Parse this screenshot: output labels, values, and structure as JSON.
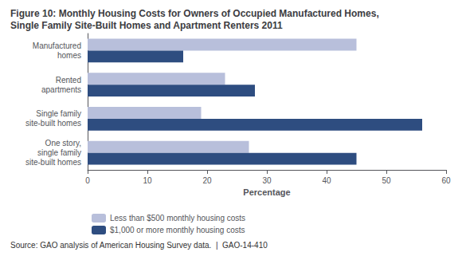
{
  "chart_data": {
    "type": "bar",
    "orientation": "horizontal",
    "title": "Figure 10: Monthly Housing Costs for Owners of Occupied Manufactured Homes,\nSingle Family Site-Built Homes and Apartment Renters 2011",
    "categories": [
      "Manufactured\nhomes",
      "Rented\napartments",
      "Single family\nsite-built homes",
      "One story,\nsingle family\nsite-built homes"
    ],
    "series": [
      {
        "name": "Less than $500 monthly housing costs",
        "color": "#b8bfdb",
        "values": [
          45,
          23,
          19,
          27
        ]
      },
      {
        "name": "$1,000 or more monthly housing costs",
        "color": "#2e4d80",
        "values": [
          16,
          28,
          56,
          45
        ]
      }
    ],
    "xlabel": "Percentage",
    "xlim": [
      0,
      60
    ],
    "xticks": [
      0,
      10,
      20,
      30,
      40,
      50,
      60
    ],
    "grid": false,
    "legend": "lower left",
    "annotations": [
      "Source: GAO analysis of American Housing Survey data.  |  GAO-14-410"
    ]
  }
}
